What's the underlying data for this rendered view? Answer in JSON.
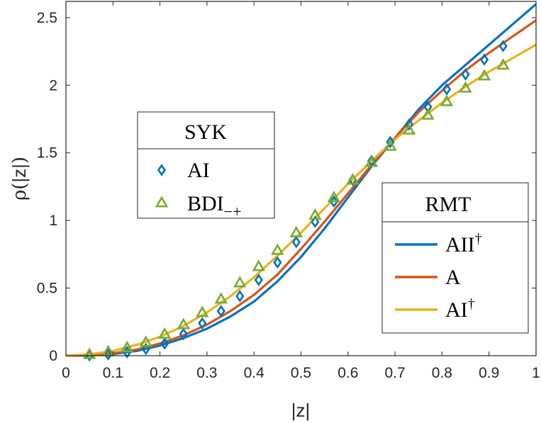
{
  "chart_data": {
    "type": "line",
    "title": "",
    "xlabel": "|z|",
    "ylabel_prefix": "ρ(",
    "ylabel_arg": "|z|",
    "ylabel_suffix": ")",
    "xlim": [
      0,
      1
    ],
    "ylim": [
      0,
      2.62
    ],
    "xticks": [
      0,
      0.1,
      0.2,
      0.3,
      0.4,
      0.5,
      0.6,
      0.7,
      0.8,
      0.9,
      1
    ],
    "xtick_labels": [
      "0",
      "0.1",
      "0.2",
      "0.3",
      "0.4",
      "0.5",
      "0.6",
      "0.7",
      "0.8",
      "0.9",
      "1"
    ],
    "yticks": [
      0,
      0.5,
      1,
      1.5,
      2,
      2.5
    ],
    "ytick_labels": [
      "0",
      "0.5",
      "1",
      "1.5",
      "2",
      "2.5"
    ],
    "grid": false,
    "colors": {
      "AII": "#0072BD",
      "A": "#D95319",
      "AI": "#EDB120",
      "marker_AI": "#0072BD",
      "marker_BDI": "#77AC30"
    },
    "series": [
      {
        "name": "AII†",
        "label_base": "AII",
        "label_sup": "†",
        "kind": "line",
        "color_key": "AII",
        "x": [
          0,
          0.05,
          0.1,
          0.15,
          0.2,
          0.25,
          0.3,
          0.35,
          0.4,
          0.45,
          0.5,
          0.55,
          0.6,
          0.65,
          0.7,
          0.75,
          0.8,
          0.85,
          0.9,
          0.95,
          1.0
        ],
        "y": [
          0,
          0.002,
          0.012,
          0.035,
          0.075,
          0.13,
          0.2,
          0.29,
          0.4,
          0.55,
          0.73,
          0.94,
          1.17,
          1.4,
          1.61,
          1.82,
          2.0,
          2.15,
          2.3,
          2.45,
          2.6
        ]
      },
      {
        "name": "A",
        "label_base": "A",
        "label_sup": "",
        "kind": "line",
        "color_key": "A",
        "x": [
          0,
          0.05,
          0.1,
          0.15,
          0.2,
          0.25,
          0.3,
          0.35,
          0.4,
          0.45,
          0.5,
          0.55,
          0.6,
          0.65,
          0.7,
          0.75,
          0.8,
          0.85,
          0.9,
          0.95,
          1.0
        ],
        "y": [
          0,
          0.004,
          0.018,
          0.045,
          0.09,
          0.15,
          0.23,
          0.33,
          0.45,
          0.6,
          0.79,
          0.99,
          1.2,
          1.41,
          1.61,
          1.8,
          1.96,
          2.11,
          2.24,
          2.36,
          2.48
        ]
      },
      {
        "name": "AI†",
        "label_base": "AI",
        "label_sup": "†",
        "kind": "line",
        "color_key": "AI",
        "x": [
          0,
          0.05,
          0.1,
          0.15,
          0.2,
          0.25,
          0.3,
          0.35,
          0.4,
          0.45,
          0.5,
          0.55,
          0.6,
          0.65,
          0.7,
          0.75,
          0.8,
          0.85,
          0.9,
          0.95,
          1.0
        ],
        "y": [
          0,
          0.01,
          0.035,
          0.08,
          0.14,
          0.22,
          0.32,
          0.44,
          0.58,
          0.74,
          0.91,
          1.09,
          1.27,
          1.44,
          1.6,
          1.74,
          1.87,
          1.99,
          2.1,
          2.2,
          2.3
        ]
      },
      {
        "name": "AI",
        "label_base": "AI",
        "label_sub": "",
        "kind": "marker",
        "marker": "diamond",
        "color_key": "marker_AI",
        "x": [
          0.05,
          0.09,
          0.13,
          0.17,
          0.21,
          0.25,
          0.29,
          0.33,
          0.37,
          0.41,
          0.45,
          0.49,
          0.53,
          0.57,
          0.61,
          0.65,
          0.69,
          0.73,
          0.77,
          0.81,
          0.85,
          0.89,
          0.93
        ],
        "y": [
          0.002,
          0.01,
          0.025,
          0.05,
          0.09,
          0.16,
          0.24,
          0.33,
          0.44,
          0.56,
          0.69,
          0.84,
          0.99,
          1.14,
          1.3,
          1.44,
          1.58,
          1.71,
          1.84,
          1.97,
          2.08,
          2.19,
          2.29
        ]
      },
      {
        "name": "BDI−+",
        "label_base": "BDI",
        "label_sub": "−+",
        "kind": "marker",
        "marker": "triangle",
        "color_key": "marker_BDI",
        "x": [
          0.05,
          0.09,
          0.13,
          0.17,
          0.21,
          0.25,
          0.29,
          0.33,
          0.37,
          0.41,
          0.45,
          0.49,
          0.53,
          0.57,
          0.61,
          0.65,
          0.69,
          0.73,
          0.77,
          0.81,
          0.85,
          0.89,
          0.93
        ],
        "y": [
          0.01,
          0.03,
          0.06,
          0.1,
          0.16,
          0.23,
          0.32,
          0.42,
          0.54,
          0.66,
          0.78,
          0.91,
          1.04,
          1.17,
          1.3,
          1.43,
          1.55,
          1.67,
          1.78,
          1.88,
          1.98,
          2.07,
          2.15
        ]
      }
    ],
    "legends": [
      {
        "title": "SYK",
        "placement": "center-left",
        "entries": [
          "AI",
          "BDI−+"
        ]
      },
      {
        "title": "RMT",
        "placement": "bottom-right",
        "entries": [
          "AII†",
          "A",
          "AI†"
        ]
      }
    ]
  }
}
